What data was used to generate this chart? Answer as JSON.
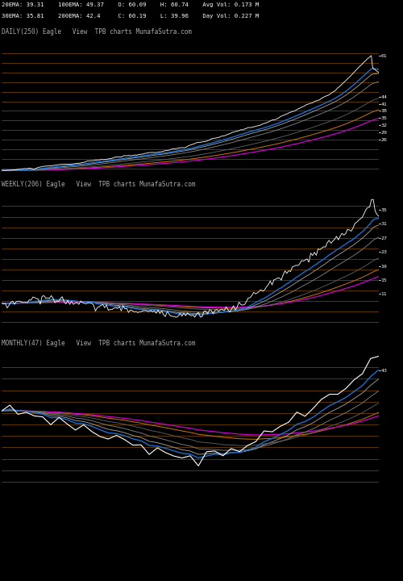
{
  "bg_color": "#000000",
  "text_color": "#ffffff",
  "label_color": "#aaaaaa",
  "header_line1": "20EMA: 39.31    100EMA: 49.37    O: 60.09    H: 60.74    Avg Vol: 0.173 M",
  "header_line2": "30EMA: 35.81    200EMA: 42.4     C: 60.19    L: 39.96    Day Vol: 0.227 M",
  "panel_labels": [
    "DAILY(250) Eagle   View  TPB charts MunafaSutra.com",
    "WEEKLY(206) Eagle   View  TPB charts MunafaSutra.com",
    "MONTHLY(47) Eagle   View  TPB charts MunafaSutra.com"
  ],
  "orange_color": "#cc7700",
  "blue_color": "#1a6fce",
  "magenta_color": "#cc00cc",
  "white_color": "#ffffff",
  "gray1_color": "#888888",
  "gray2_color": "#666666",
  "gray3_color": "#aaaaaa",
  "daily_yticks": [
    61,
    44,
    41,
    38,
    35,
    32,
    29,
    26
  ],
  "weekly_yticks": [
    35,
    31,
    27,
    23,
    19,
    15,
    11
  ],
  "monthly_ytick": 43
}
